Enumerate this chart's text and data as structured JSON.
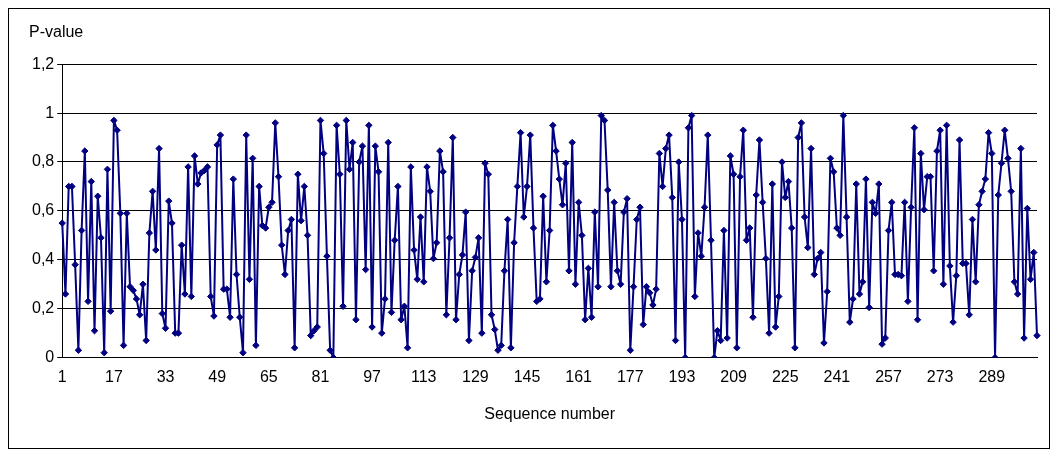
{
  "chart_data": {
    "type": "line",
    "ylabel": "P-value",
    "xlabel": "Sequence number",
    "categories": [
      "1",
      null,
      null,
      null,
      null,
      null,
      null,
      null,
      null,
      null,
      null,
      null,
      null,
      null,
      null,
      null,
      "17",
      null,
      null,
      null,
      null,
      null,
      null,
      null,
      null,
      null,
      null,
      null,
      null,
      null,
      null,
      null,
      "33",
      null,
      null,
      null,
      null,
      null,
      null,
      null,
      null,
      null,
      null,
      null,
      null,
      null,
      null,
      null,
      "49",
      null,
      null,
      null,
      null,
      null,
      null,
      null,
      null,
      null,
      null,
      null,
      null,
      null,
      null,
      null,
      "65",
      null,
      null,
      null,
      null,
      null,
      null,
      null,
      null,
      null,
      null,
      null,
      null,
      null,
      null,
      null,
      "81",
      null,
      null,
      null,
      null,
      null,
      null,
      null,
      null,
      null,
      null,
      null,
      null,
      null,
      null,
      null,
      "97",
      null,
      null,
      null,
      null,
      null,
      null,
      null,
      null,
      null,
      null,
      null,
      null,
      null,
      null,
      null,
      "113",
      null,
      null,
      null,
      null,
      null,
      null,
      null,
      null,
      null,
      null,
      null,
      null,
      null,
      null,
      null,
      "129",
      null,
      null,
      null,
      null,
      null,
      null,
      null,
      null,
      null,
      null,
      null,
      null,
      null,
      null,
      null,
      "145",
      null,
      null,
      null,
      null,
      null,
      null,
      null,
      null,
      null,
      null,
      null,
      null,
      null,
      null,
      null,
      "161",
      null,
      null,
      null,
      null,
      null,
      null,
      null,
      null,
      null,
      null,
      null,
      null,
      null,
      null,
      null,
      "177",
      null,
      null,
      null,
      null,
      null,
      null,
      null,
      null,
      null,
      null,
      null,
      null,
      null,
      null,
      null,
      "193",
      null,
      null,
      null,
      null,
      null,
      null,
      null,
      null,
      null,
      null,
      null,
      null,
      null,
      null,
      null,
      "209",
      null,
      null,
      null,
      null,
      null,
      null,
      null,
      null,
      null,
      null,
      null,
      null,
      null,
      null,
      null,
      "225",
      null,
      null,
      null,
      null,
      null,
      null,
      null,
      null,
      null,
      null,
      null,
      null,
      null,
      null,
      null,
      "241",
      null,
      null,
      null,
      null,
      null,
      null,
      null,
      null,
      null,
      null,
      null,
      null,
      null,
      null,
      null,
      "257",
      null,
      null,
      null,
      null,
      null,
      null,
      null,
      null,
      null,
      null,
      null,
      null,
      null,
      null,
      null,
      "273",
      null,
      null,
      null,
      null,
      null,
      null,
      null,
      null,
      null,
      null,
      null,
      null,
      null,
      null,
      null,
      "289",
      null,
      null,
      null,
      null,
      null,
      null,
      null,
      null,
      null,
      null,
      null,
      null,
      null,
      null
    ],
    "series": [
      {
        "color": "#000080",
        "values": [
          0.55,
          0.26,
          0.7,
          0.7,
          0.38,
          0.03,
          0.52,
          0.845,
          0.23,
          0.72,
          0.11,
          0.66,
          0.49,
          0.02,
          0.77,
          0.19,
          0.97,
          0.93,
          0.59,
          0.05,
          0.59,
          0.29,
          0.275,
          0.24,
          0.175,
          0.3,
          0.07,
          0.51,
          0.68,
          0.44,
          0.855,
          0.18,
          0.12,
          0.64,
          0.55,
          0.1,
          0.1,
          0.46,
          0.26,
          0.78,
          0.25,
          0.825,
          0.71,
          0.755,
          0.765,
          0.78,
          0.25,
          0.17,
          0.87,
          0.91,
          0.28,
          0.28,
          0.165,
          0.73,
          0.34,
          0.165,
          0.02,
          0.91,
          0.32,
          0.815,
          0.05,
          0.7,
          0.54,
          0.53,
          0.615,
          0.635,
          0.96,
          0.74,
          0.46,
          0.34,
          0.52,
          0.565,
          0.04,
          0.75,
          0.56,
          0.7,
          0.5,
          0.09,
          0.11,
          0.125,
          0.97,
          0.835,
          0.415,
          0.03,
          0.0,
          0.95,
          0.75,
          0.21,
          0.97,
          0.77,
          0.88,
          0.155,
          0.8,
          0.865,
          0.36,
          0.95,
          0.125,
          0.865,
          0.76,
          0.1,
          0.24,
          0.88,
          0.185,
          0.48,
          0.7,
          0.155,
          0.21,
          0.04,
          0.78,
          0.44,
          0.32,
          0.575,
          0.31,
          0.78,
          0.68,
          0.405,
          0.47,
          0.845,
          0.76,
          0.175,
          0.49,
          0.9,
          0.155,
          0.34,
          0.42,
          0.595,
          0.07,
          0.355,
          0.41,
          0.49,
          0.1,
          0.795,
          0.75,
          0.175,
          0.115,
          0.03,
          0.05,
          0.355,
          0.565,
          0.04,
          0.47,
          0.7,
          0.92,
          0.575,
          0.7,
          0.91,
          0.53,
          0.23,
          0.24,
          0.66,
          0.31,
          0.52,
          0.95,
          0.845,
          0.73,
          0.625,
          0.795,
          0.355,
          0.88,
          0.3,
          0.635,
          0.5,
          0.155,
          0.365,
          0.165,
          0.595,
          0.29,
          0.99,
          0.97,
          0.685,
          0.29,
          0.635,
          0.355,
          0.3,
          0.595,
          0.65,
          0.03,
          0.29,
          0.565,
          0.615,
          0.135,
          0.29,
          0.265,
          0.215,
          0.28,
          0.835,
          0.7,
          0.855,
          0.91,
          0.655,
          0.07,
          0.8,
          0.565,
          0.0,
          0.94,
          0.99,
          0.25,
          0.51,
          0.415,
          0.615,
          0.91,
          0.48,
          0.0,
          0.11,
          0.07,
          0.52,
          0.08,
          0.825,
          0.75,
          0.04,
          0.74,
          0.93,
          0.48,
          0.53,
          0.165,
          0.665,
          0.89,
          0.635,
          0.405,
          0.1,
          0.71,
          0.125,
          0.25,
          0.8,
          0.655,
          0.72,
          0.53,
          0.04,
          0.9,
          0.96,
          0.575,
          0.45,
          0.855,
          0.34,
          0.405,
          0.43,
          0.06,
          0.27,
          0.815,
          0.76,
          0.53,
          0.5,
          0.99,
          0.575,
          0.145,
          0.24,
          0.71,
          0.26,
          0.31,
          0.73,
          0.205,
          0.635,
          0.59,
          0.71,
          0.055,
          0.08,
          0.52,
          0.635,
          0.34,
          0.34,
          0.335,
          0.635,
          0.23,
          0.615,
          0.94,
          0.155,
          0.835,
          0.605,
          0.74,
          0.74,
          0.355,
          0.845,
          0.93,
          0.3,
          0.95,
          0.375,
          0.145,
          0.335,
          0.89,
          0.385,
          0.385,
          0.175,
          0.565,
          0.31,
          0.625,
          0.68,
          0.73,
          0.92,
          0.835,
          0.0,
          0.665,
          0.795,
          0.93,
          0.815,
          0.68,
          0.31,
          0.26,
          0.855,
          0.08,
          0.61,
          0.32,
          0.43,
          0.09
        ]
      }
    ],
    "ylim": [
      0,
      1.2
    ],
    "yticks": [
      0,
      {
        "value": 0.2,
        "label": "0,2"
      },
      {
        "value": 0.4,
        "label": "0,4"
      },
      {
        "value": 0.6,
        "label": "0,6"
      },
      {
        "value": 0.8,
        "label": "0,8"
      },
      1,
      {
        "value": 1.2,
        "label": "1,2"
      }
    ],
    "grid": "y",
    "marker": "diamond",
    "line_style": "solid"
  }
}
